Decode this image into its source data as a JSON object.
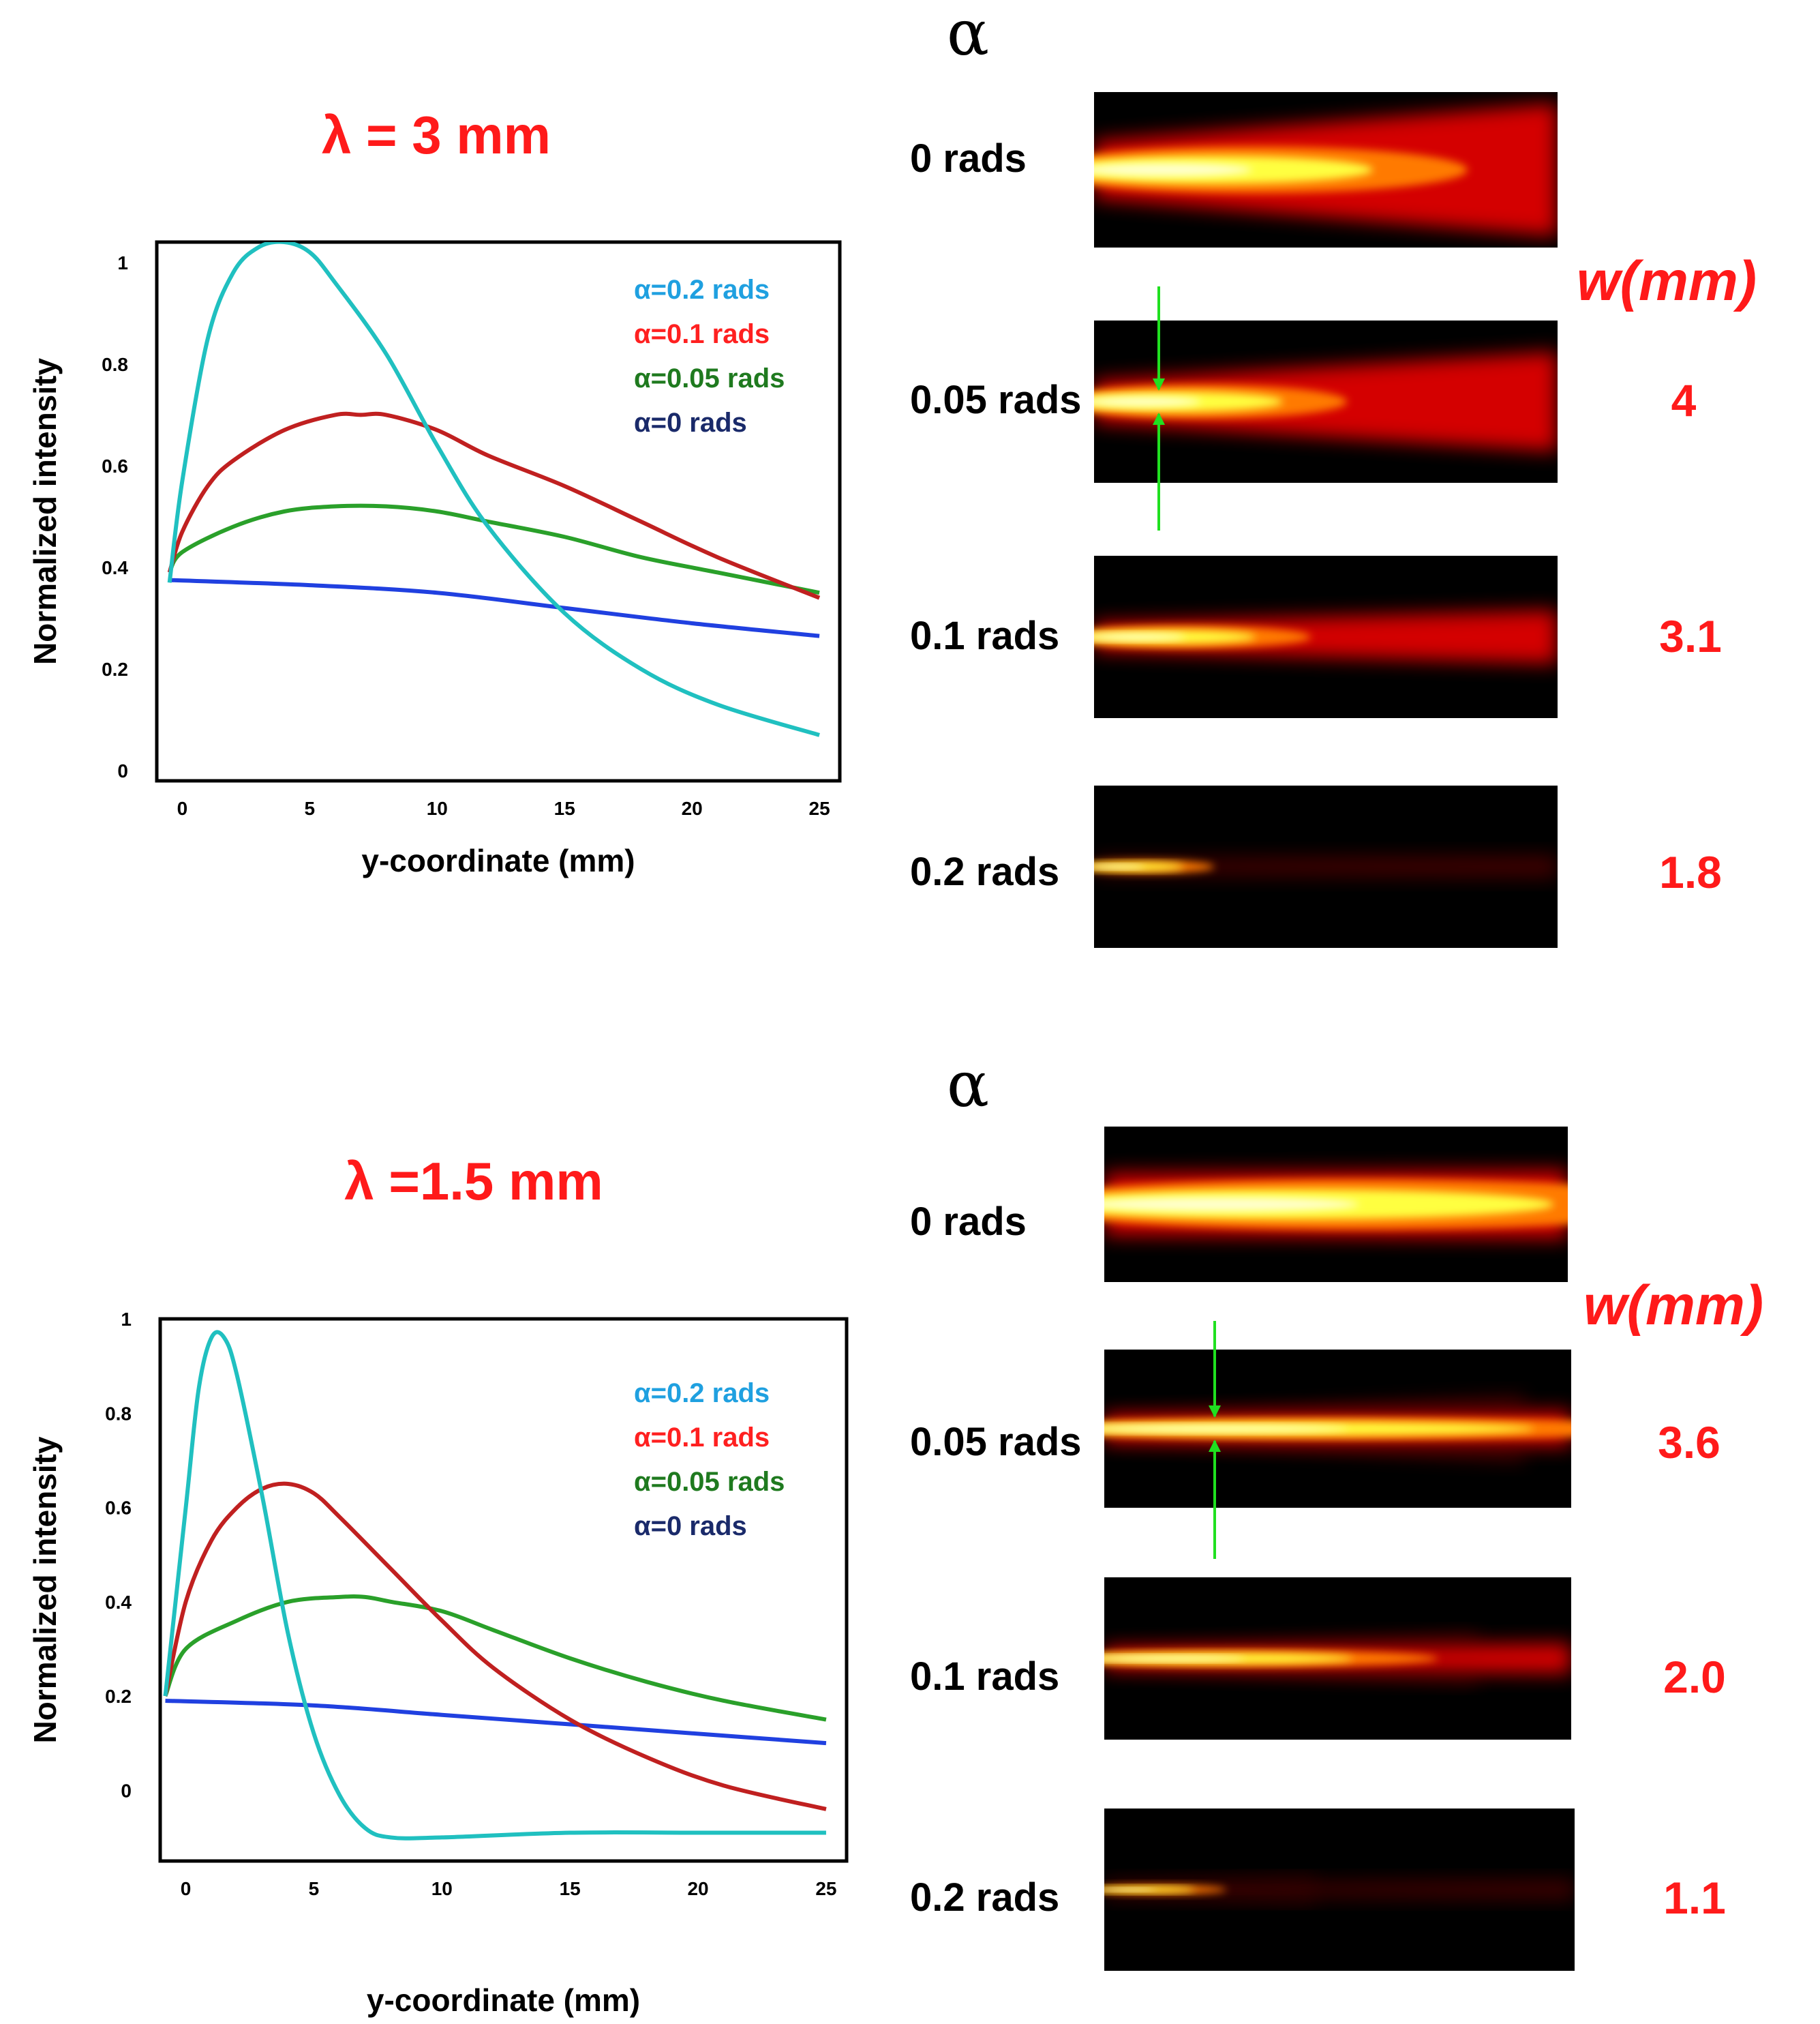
{
  "figure": {
    "panels": [
      {
        "lambda_label": "λ = 3 mm",
        "alpha_symbol": "α",
        "w_title": "w(mm)",
        "beam_rows": [
          {
            "label": "0  rads",
            "w": ""
          },
          {
            "label": "0.05 rads",
            "w": "4"
          },
          {
            "label": "0.1 rads",
            "w": "3.1"
          },
          {
            "label": "0.2 rads",
            "w": "1.8"
          }
        ],
        "beam_profiles": [
          {
            "alpha": 0,
            "core_width": 0.26,
            "core_length": 0.62,
            "halo_growth": 1.5,
            "side_lobes": false
          },
          {
            "alpha": 0.05,
            "core_width": 0.18,
            "core_length": 0.42,
            "halo_growth": 1.6,
            "side_lobes": false
          },
          {
            "alpha": 0.1,
            "core_width": 0.12,
            "core_length": 0.36,
            "halo_growth": 1.1,
            "side_lobes": false
          },
          {
            "alpha": 0.2,
            "core_width": 0.07,
            "core_length": 0.2,
            "halo_growth": 0.5,
            "side_lobes": false
          }
        ]
      },
      {
        "lambda_label": "λ =1.5 mm",
        "alpha_symbol": "α",
        "w_title": "w(mm)",
        "beam_rows": [
          {
            "label": "0  rads",
            "w": ""
          },
          {
            "label": "0.05 rads",
            "w": "3.6"
          },
          {
            "label": "0.1 rads",
            "w": "2.0"
          },
          {
            "label": "0.2 rads",
            "w": "1.1"
          }
        ],
        "beam_profiles": [
          {
            "alpha": 0,
            "core_width": 0.28,
            "core_length": 1.0,
            "halo_growth": 0.2,
            "side_lobes": false
          },
          {
            "alpha": 0.05,
            "core_width": 0.12,
            "core_length": 0.95,
            "halo_growth": 0.4,
            "side_lobes": true
          },
          {
            "alpha": 0.1,
            "core_width": 0.09,
            "core_length": 0.55,
            "halo_growth": 0.6,
            "side_lobes": true
          },
          {
            "alpha": 0.2,
            "core_width": 0.05,
            "core_length": 0.2,
            "halo_growth": 0.8,
            "side_lobes": true
          }
        ]
      }
    ]
  },
  "colors": {
    "alpha_0.2": "#1fa0e0",
    "alpha_0.1": "#ff2020",
    "alpha_0.05": "#1f7a1f",
    "alpha_0": "#1a2a6a",
    "curve_0.2": "#20c0c0",
    "curve_0.1": "#c02020",
    "curve_0.05": "#2aa02a",
    "curve_0": "#2040e0",
    "marker": "#20e020"
  },
  "chart_data": [
    {
      "type": "line",
      "xlabel": "y-coordinate (mm)",
      "ylabel": "Normalized intensity",
      "xticks": [
        "0",
        "5",
        "10",
        "15",
        "20",
        "25"
      ],
      "yticks": [
        "0",
        "0.2",
        "0.4",
        "0.6",
        "0.8",
        "1"
      ],
      "xlim": [
        -1,
        25.8
      ],
      "ylim": [
        -0.02,
        1.04
      ],
      "grid": false,
      "legend_position": "top-right",
      "legend": [
        {
          "label": "α=0.2   rads",
          "color": "#1fa0e0"
        },
        {
          "label": "α=0.1   rads",
          "color": "#ff2020"
        },
        {
          "label": "α=0.05 rads",
          "color": "#1f7a1f"
        },
        {
          "label": "α=0       rads",
          "color": "#1a2a6a"
        }
      ],
      "series": [
        {
          "alpha": 0.2,
          "color": "#20c0c0",
          "x": [
            -0.5,
            0,
            1,
            2,
            3,
            4,
            5,
            6,
            8,
            10,
            12,
            15,
            18,
            21,
            25
          ],
          "y": [
            0.37,
            0.57,
            0.85,
            0.98,
            1.03,
            1.04,
            1.02,
            0.96,
            0.82,
            0.64,
            0.48,
            0.31,
            0.2,
            0.13,
            0.07
          ]
        },
        {
          "alpha": 0.1,
          "color": "#c02020",
          "x": [
            -0.5,
            0,
            1,
            2,
            4,
            6,
            7,
            8,
            10,
            12,
            15,
            18,
            21,
            25
          ],
          "y": [
            0.39,
            0.47,
            0.56,
            0.61,
            0.67,
            0.7,
            0.7,
            0.7,
            0.67,
            0.62,
            0.56,
            0.49,
            0.42,
            0.34
          ]
        },
        {
          "alpha": 0.05,
          "color": "#2aa02a",
          "x": [
            -0.5,
            0,
            2,
            4,
            6,
            8,
            10,
            12,
            15,
            18,
            21,
            25
          ],
          "y": [
            0.39,
            0.43,
            0.48,
            0.51,
            0.52,
            0.52,
            0.51,
            0.49,
            0.46,
            0.42,
            0.39,
            0.35
          ]
        },
        {
          "alpha": 0,
          "color": "#2040e0",
          "x": [
            -0.5,
            5,
            10,
            15,
            20,
            25
          ],
          "y": [
            0.375,
            0.365,
            0.35,
            0.32,
            0.29,
            0.265
          ]
        }
      ]
    },
    {
      "type": "line",
      "xlabel": "y-coordinate (mm)",
      "ylabel": "Normalized intensity",
      "xticks": [
        "0",
        "5",
        "10",
        "15",
        "20",
        "25"
      ],
      "yticks": [
        "0",
        "0.2",
        "0.4",
        "0.6",
        "0.8",
        "1"
      ],
      "xlim": [
        -1,
        25.8
      ],
      "ylim": [
        -0.15,
        1.0
      ],
      "grid": false,
      "legend_position": "top-right",
      "legend": [
        {
          "label": "α=0.2   rads",
          "color": "#1fa0e0"
        },
        {
          "label": "α=0.1   rads",
          "color": "#ff2020"
        },
        {
          "label": "α=0.05 rads",
          "color": "#1f7a1f"
        },
        {
          "label": "α=0       rads",
          "color": "#1a2a6a"
        }
      ],
      "series": [
        {
          "alpha": 0.2,
          "color": "#20c0c0",
          "x": [
            -0.8,
            0,
            0.5,
            1,
            1.5,
            2,
            3,
            4,
            5,
            6,
            7,
            8,
            10,
            15,
            20,
            25
          ],
          "y": [
            0.2,
            0.6,
            0.85,
            0.96,
            0.96,
            0.88,
            0.62,
            0.33,
            0.12,
            -0.01,
            -0.08,
            -0.1,
            -0.1,
            -0.09,
            -0.09,
            -0.09
          ]
        },
        {
          "alpha": 0.1,
          "color": "#c02020",
          "x": [
            -0.8,
            0,
            1,
            2,
            3,
            4,
            5,
            6,
            8,
            10,
            12,
            15,
            18,
            21,
            25
          ],
          "y": [
            0.2,
            0.4,
            0.53,
            0.6,
            0.64,
            0.65,
            0.63,
            0.58,
            0.47,
            0.36,
            0.26,
            0.15,
            0.07,
            0.01,
            -0.04
          ]
        },
        {
          "alpha": 0.05,
          "color": "#2aa02a",
          "x": [
            -0.8,
            0,
            2,
            4,
            6,
            7,
            8,
            10,
            12,
            15,
            18,
            21,
            25
          ],
          "y": [
            0.2,
            0.3,
            0.36,
            0.4,
            0.41,
            0.41,
            0.4,
            0.38,
            0.34,
            0.28,
            0.23,
            0.19,
            0.15
          ]
        },
        {
          "alpha": 0,
          "color": "#2040e0",
          "x": [
            -0.8,
            5,
            10,
            15,
            20,
            25
          ],
          "y": [
            0.19,
            0.18,
            0.16,
            0.14,
            0.12,
            0.1
          ]
        }
      ]
    }
  ]
}
